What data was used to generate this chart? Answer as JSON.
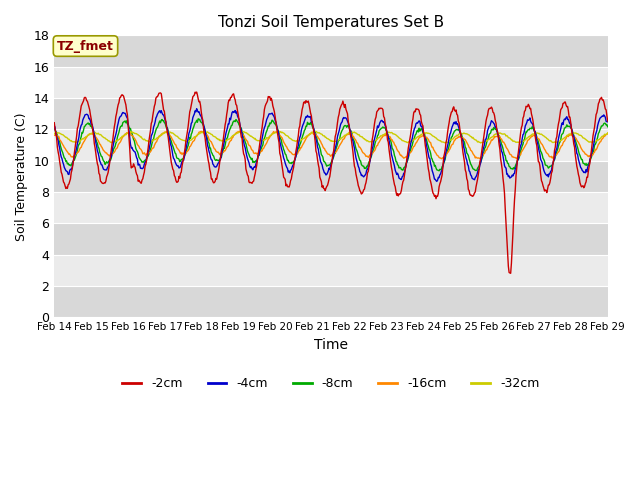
{
  "title": "Tonzi Soil Temperatures Set B",
  "xlabel": "Time",
  "ylabel": "Soil Temperature (C)",
  "annotation": "TZ_fmet",
  "ylim": [
    0,
    18
  ],
  "yticks": [
    0,
    2,
    4,
    6,
    8,
    10,
    12,
    14,
    16,
    18
  ],
  "series_colors": [
    "#cc0000",
    "#0000cc",
    "#00aa00",
    "#ff8800",
    "#cccc00"
  ],
  "series_labels": [
    "-2cm",
    "-4cm",
    "-8cm",
    "-16cm",
    "-32cm"
  ],
  "fig_bg": "#ffffff",
  "plot_bg_light": "#ebebeb",
  "plot_bg_dark": "#d8d8d8",
  "grid_line_color": "#ffffff",
  "tick_dates": [
    14,
    15,
    16,
    17,
    18,
    19,
    20,
    21,
    22,
    23,
    24,
    25,
    26,
    27,
    28,
    29
  ],
  "n_points": 720,
  "figsize": [
    6.4,
    4.8
  ],
  "dpi": 100
}
